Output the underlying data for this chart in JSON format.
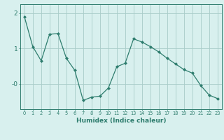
{
  "x": [
    0,
    1,
    2,
    3,
    4,
    5,
    6,
    7,
    8,
    9,
    10,
    11,
    12,
    13,
    14,
    15,
    16,
    17,
    18,
    19,
    20,
    21,
    22,
    23
  ],
  "y": [
    1.9,
    1.05,
    0.65,
    1.4,
    1.42,
    0.72,
    0.38,
    -0.47,
    -0.38,
    -0.35,
    -0.12,
    0.48,
    0.58,
    1.27,
    1.18,
    1.05,
    0.9,
    0.72,
    0.56,
    0.4,
    0.3,
    -0.05,
    -0.32,
    -0.42
  ],
  "line_color": "#2e7d6e",
  "marker": "D",
  "marker_size": 2.0,
  "bg_color": "#d8f0ee",
  "grid_color": "#a8ccc8",
  "axis_color": "#2e7d6e",
  "xlabel": "Humidex (Indice chaleur)",
  "ylim": [
    -0.72,
    2.25
  ],
  "xlim": [
    -0.5,
    23.5
  ],
  "xlabel_fontsize": 6.5,
  "xtick_fontsize": 4.8,
  "ytick_fontsize": 6.5
}
